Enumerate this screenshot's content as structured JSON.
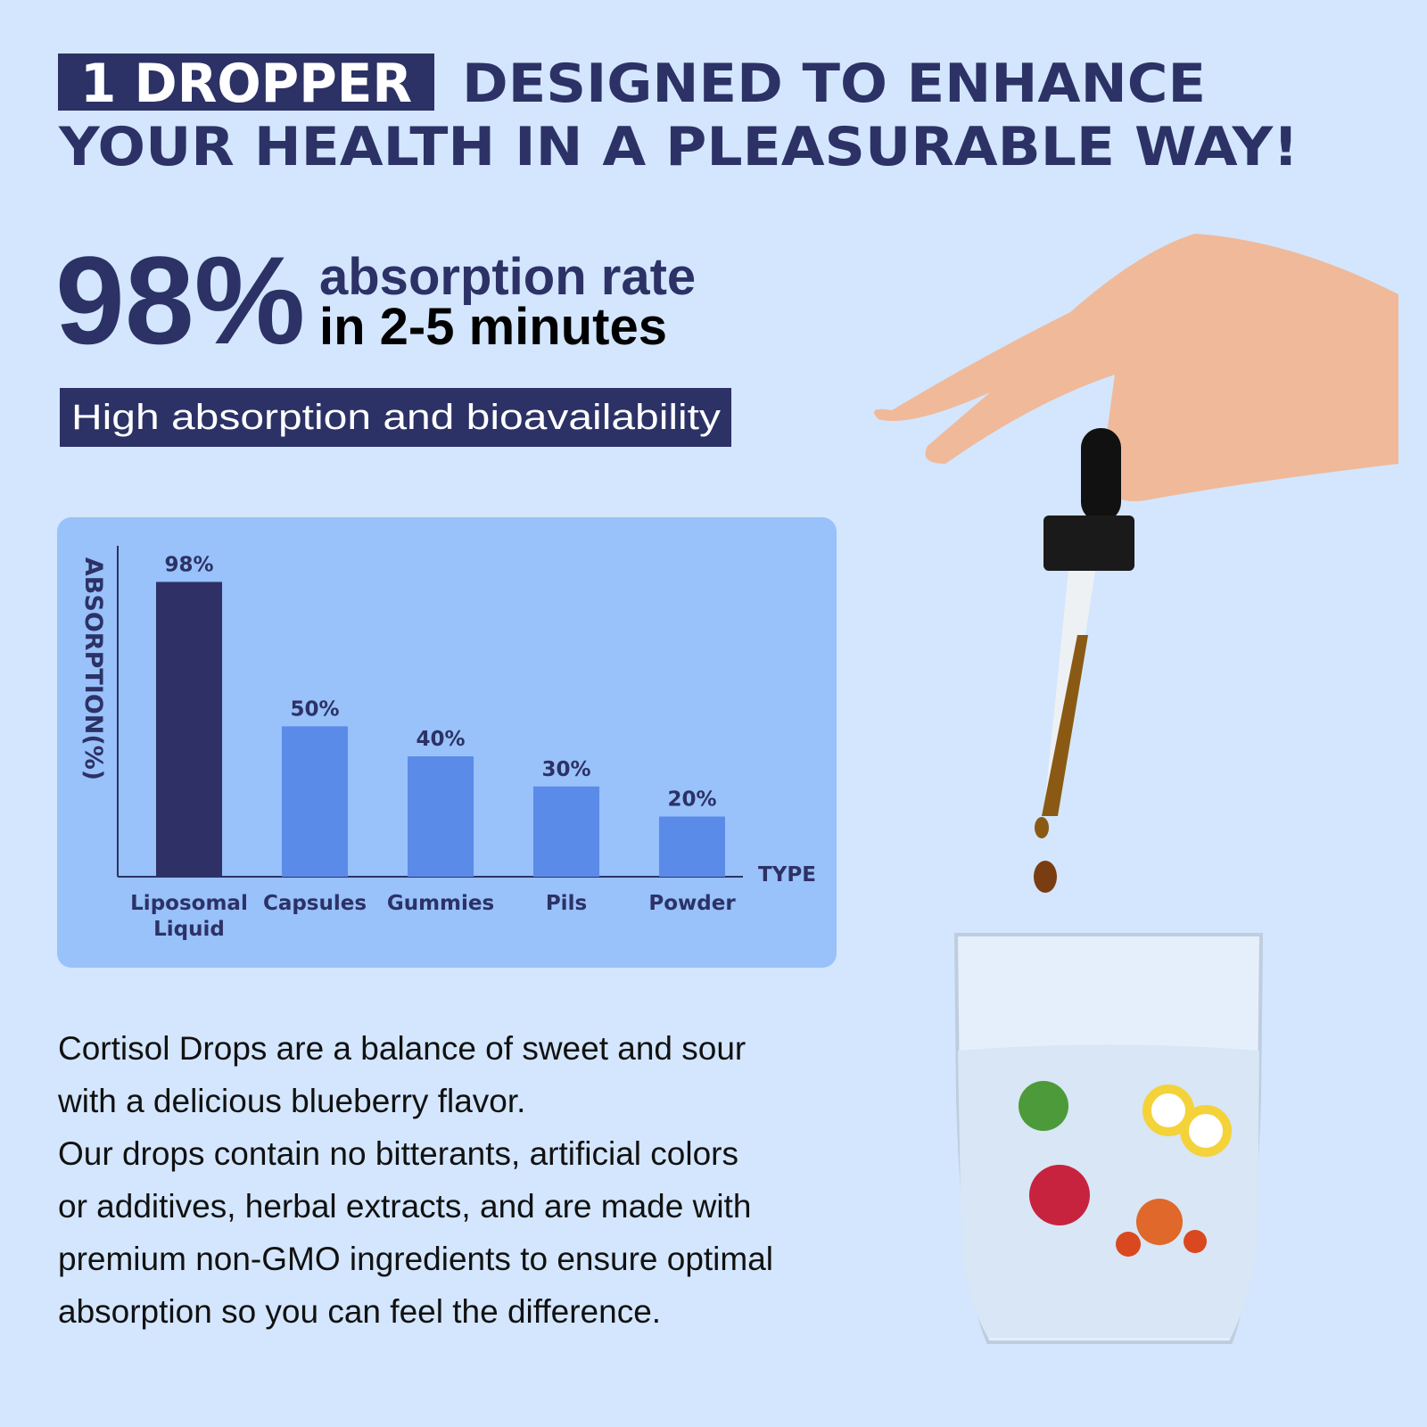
{
  "header": {
    "highlight": "1 DROPPER",
    "line1": "DESIGNED TO ENHANCE",
    "line2": "YOUR HEALTH IN A PLEASURABLE WAY!"
  },
  "stat": {
    "value": "98%",
    "line1": "absorption rate",
    "line2": "in 2-5 minutes"
  },
  "badge": "High absorption and bioavailability",
  "chart_data": {
    "type": "bar",
    "categories": [
      "Liposomal Liquid",
      "Capsules",
      "Gummies",
      "Pils",
      "Powder"
    ],
    "values": [
      98,
      50,
      40,
      30,
      20
    ],
    "value_labels": [
      "98%",
      "50%",
      "40%",
      "30%",
      "20%"
    ],
    "colors": [
      "#2f3166",
      "#5b8be8",
      "#5b8be8",
      "#5b8be8",
      "#5b8be8"
    ],
    "ylabel": "ABSORPTION(%)",
    "xlabel": "TYPE",
    "ylim": [
      0,
      110
    ]
  },
  "body": [
    "Cortisol Drops are a balance of sweet and sour",
    "with a delicious blueberry flavor.",
    "Our drops contain no bitterants, artificial colors",
    "or additives, herbal extracts, and are made with",
    "premium non-GMO ingredients to ensure optimal",
    "absorption so you can feel the difference."
  ]
}
